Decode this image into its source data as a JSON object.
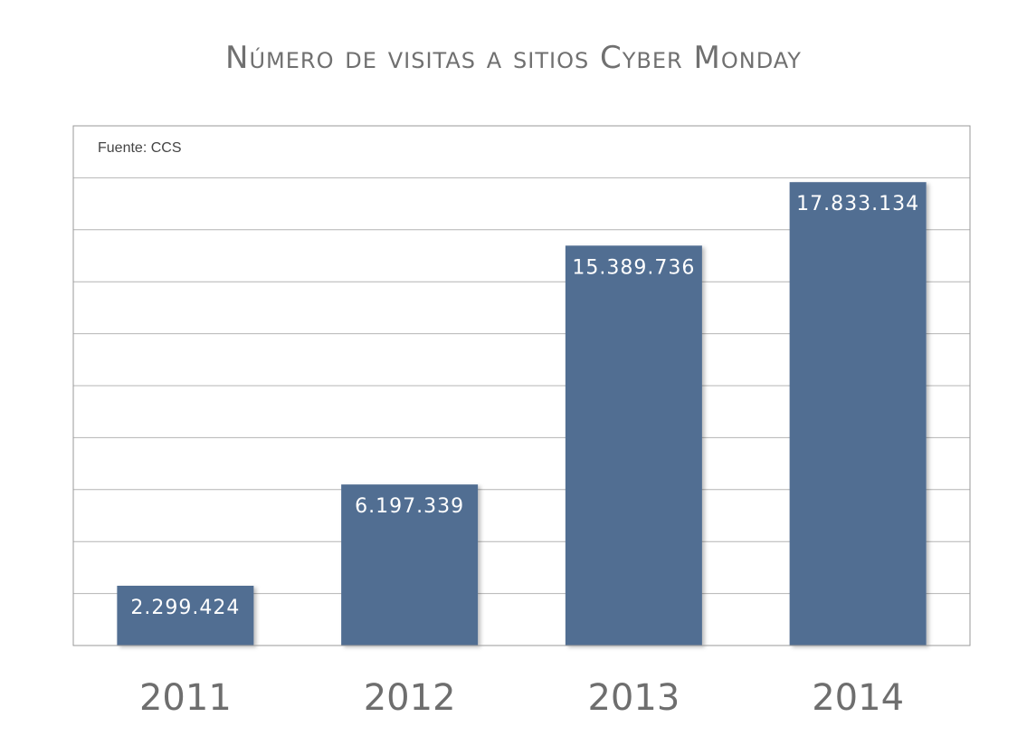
{
  "chart_data": {
    "type": "bar",
    "title": "Número de visitas a sitios Cyber Monday",
    "source": "Fuente: CCS",
    "categories": [
      "2011",
      "2012",
      "2013",
      "2014"
    ],
    "values": [
      2299424,
      6197339,
      15389736,
      17833134
    ],
    "value_labels": [
      "2.299.424",
      "6.197.339",
      "15.389.736",
      "17.833.134"
    ],
    "xlabel": "",
    "ylabel": "",
    "ylim": [
      0,
      20000000
    ],
    "grid": true,
    "legend": "none",
    "colors": {
      "bar": "#516e92",
      "grid": "#b4b4b4",
      "frame": "#9a9a9a"
    }
  }
}
